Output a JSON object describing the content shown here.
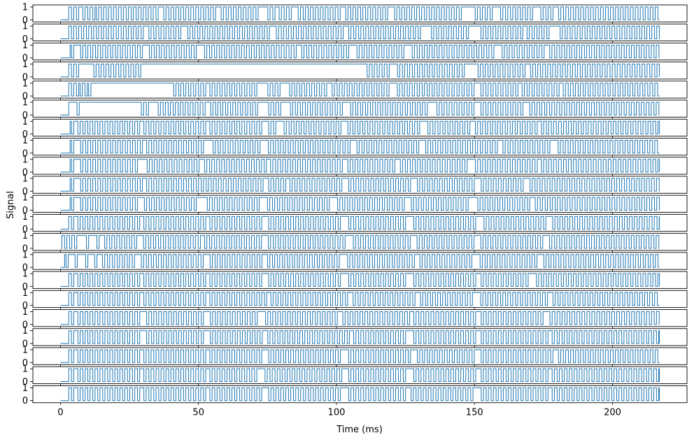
{
  "chart_data": {
    "type": "line",
    "subtype": "stacked digital signal traces (21 channels)",
    "xlabel": "Time (ms)",
    "ylabel": "Signal",
    "xlim": [
      -10,
      227
    ],
    "ylim": [
      0,
      1
    ],
    "x_ticks": [
      0,
      50,
      100,
      150,
      200
    ],
    "x_tick_labels": [
      "0",
      "50",
      "100",
      "150",
      "200"
    ],
    "y_ticks": [
      0,
      1
    ],
    "y_tick_labels": [
      "0",
      "1"
    ],
    "line_color": "#1f77b4",
    "grid": false,
    "legend": "none",
    "channel_count": 21,
    "time_range": [
      0,
      217
    ],
    "common": {
      "start_high": 3,
      "gap_every": 9,
      "period": 1.8
    },
    "channels": [
      {
        "start": 3.0,
        "segments": [
          [
            3,
            7
          ],
          [
            8,
            12
          ],
          [
            13,
            217
          ]
        ],
        "gaps": [
          [
            35,
            37
          ],
          [
            56,
            58
          ],
          [
            72,
            75
          ],
          [
            77,
            79
          ],
          [
            83,
            86
          ],
          [
            101,
            103
          ],
          [
            119,
            121
          ],
          [
            146,
            150
          ],
          [
            157,
            159
          ],
          [
            172,
            174
          ],
          [
            178,
            180
          ]
        ]
      },
      {
        "start": 3.0,
        "segments": [
          [
            3,
            8
          ],
          [
            9,
            217
          ]
        ],
        "gaps": [
          [
            30,
            32
          ],
          [
            44,
            46
          ],
          [
            76,
            78
          ],
          [
            102,
            104
          ],
          [
            131,
            134
          ],
          [
            148,
            152
          ],
          [
            167,
            169
          ],
          [
            178,
            181
          ]
        ]
      },
      {
        "start": 3.5,
        "segments": [
          [
            4,
            217
          ]
        ],
        "gaps": [
          [
            5,
            7
          ],
          [
            30,
            32
          ],
          [
            50,
            52
          ],
          [
            78,
            79
          ],
          [
            85,
            87
          ],
          [
            105,
            107
          ],
          [
            124,
            127
          ],
          [
            158,
            160
          ],
          [
            175,
            177
          ]
        ]
      },
      {
        "start": 3.0,
        "segments": [
          [
            3,
            7
          ],
          [
            12,
            29
          ],
          [
            111,
            217
          ]
        ],
        "gaps": [
          [
            120,
            122
          ],
          [
            147,
            151
          ],
          [
            168,
            170
          ]
        ]
      },
      {
        "start": 3.0,
        "segments": [
          [
            3,
            6
          ],
          [
            7,
            9
          ],
          [
            10,
            11
          ],
          [
            41,
            217
          ]
        ],
        "gaps": [
          [
            52,
            54
          ],
          [
            72,
            75
          ],
          [
            80,
            83
          ],
          [
            96,
            98
          ],
          [
            120,
            122
          ],
          [
            150,
            152
          ],
          [
            165,
            167
          ],
          [
            180,
            182
          ]
        ]
      },
      {
        "start": 3.0,
        "segments": [
          [
            6,
            6.5
          ],
          [
            29,
            32
          ],
          [
            35,
            217
          ]
        ],
        "gaps": [
          [
            52,
            54
          ],
          [
            72,
            75
          ],
          [
            80,
            83
          ],
          [
            103,
            105
          ],
          [
            133,
            136
          ],
          [
            150,
            152
          ],
          [
            168,
            170
          ]
        ]
      },
      {
        "start": 3.5,
        "segments": [
          [
            4,
            217
          ]
        ],
        "gaps": [
          [
            5,
            6
          ],
          [
            28,
            30
          ],
          [
            52,
            54
          ],
          [
            73,
            75
          ],
          [
            79,
            81
          ],
          [
            102,
            104
          ],
          [
            130,
            133
          ],
          [
            148,
            150
          ],
          [
            172,
            174
          ]
        ]
      },
      {
        "start": 3.5,
        "segments": [
          [
            4,
            217
          ]
        ],
        "gaps": [
          [
            5,
            7
          ],
          [
            29,
            31
          ],
          [
            52,
            55
          ],
          [
            73,
            75
          ],
          [
            105,
            107
          ],
          [
            130,
            132
          ],
          [
            158,
            160
          ],
          [
            178,
            180
          ]
        ]
      },
      {
        "start": 3.5,
        "segments": [
          [
            4,
            217
          ]
        ],
        "gaps": [
          [
            5,
            7
          ],
          [
            28,
            31
          ],
          [
            50,
            52
          ],
          [
            74,
            76
          ],
          [
            102,
            104
          ],
          [
            121,
            123
          ],
          [
            148,
            150
          ],
          [
            172,
            174
          ]
        ]
      },
      {
        "start": 3.5,
        "segments": [
          [
            4,
            217
          ]
        ],
        "gaps": [
          [
            5,
            7
          ],
          [
            29,
            31
          ],
          [
            73,
            75
          ],
          [
            81,
            83
          ],
          [
            102,
            104
          ],
          [
            127,
            129
          ],
          [
            150,
            152
          ],
          [
            168,
            170
          ]
        ]
      },
      {
        "start": 3.5,
        "segments": [
          [
            4,
            217
          ]
        ],
        "gaps": [
          [
            5,
            7
          ],
          [
            28,
            30
          ],
          [
            50,
            53
          ],
          [
            72,
            75
          ],
          [
            98,
            100
          ],
          [
            125,
            127
          ],
          [
            148,
            151
          ],
          [
            170,
            172
          ]
        ]
      },
      {
        "start": 3.0,
        "segments": [
          [
            3,
            217
          ]
        ],
        "gaps": [
          [
            4,
            6
          ],
          [
            28,
            30
          ],
          [
            52,
            54
          ],
          [
            73,
            75
          ],
          [
            102,
            104
          ],
          [
            126,
            128
          ],
          [
            150,
            153
          ],
          [
            176,
            178
          ]
        ]
      },
      {
        "start": 0.5,
        "segments": [
          [
            0.5,
            217
          ]
        ],
        "gaps": [
          [
            6,
            9
          ],
          [
            11,
            13
          ],
          [
            14,
            16
          ],
          [
            28,
            30
          ],
          [
            50,
            52
          ],
          [
            73,
            75
          ],
          [
            104,
            106
          ],
          [
            127,
            129
          ],
          [
            150,
            152
          ],
          [
            175,
            177
          ]
        ]
      },
      {
        "start": 1.5,
        "segments": [
          [
            2,
            217
          ]
        ],
        "gaps": [
          [
            3,
            5
          ],
          [
            7,
            9
          ],
          [
            10,
            12
          ],
          [
            13,
            15
          ],
          [
            27,
            29
          ],
          [
            52,
            54
          ],
          [
            73,
            75
          ],
          [
            102,
            104
          ],
          [
            128,
            130
          ],
          [
            150,
            152
          ],
          [
            173,
            175
          ]
        ]
      },
      {
        "start": 3.0,
        "segments": [
          [
            3,
            217
          ]
        ],
        "gaps": [
          [
            4,
            6
          ],
          [
            28,
            30
          ],
          [
            52,
            54
          ],
          [
            73,
            75
          ],
          [
            102,
            104
          ],
          [
            126,
            128
          ],
          [
            150,
            152
          ],
          [
            170,
            172
          ]
        ]
      },
      {
        "start": 3.0,
        "segments": [
          [
            3,
            217
          ]
        ],
        "gaps": [
          [
            4,
            6
          ],
          [
            28,
            30
          ],
          [
            52,
            54
          ],
          [
            74,
            76
          ],
          [
            104,
            106
          ],
          [
            128,
            130
          ],
          [
            150,
            152
          ],
          [
            176,
            178
          ]
        ]
      },
      {
        "start": 3.0,
        "segments": [
          [
            3,
            217
          ]
        ],
        "gaps": [
          [
            4,
            6
          ],
          [
            29,
            31
          ],
          [
            52,
            54
          ],
          [
            72,
            74
          ],
          [
            100,
            102
          ],
          [
            126,
            128
          ],
          [
            150,
            152
          ],
          [
            175,
            177
          ]
        ]
      },
      {
        "start": 3.0,
        "segments": [
          [
            3,
            217
          ]
        ],
        "gaps": [
          [
            4,
            6
          ],
          [
            29,
            31
          ],
          [
            52,
            54
          ],
          [
            73,
            75
          ],
          [
            104,
            106
          ],
          [
            126,
            128
          ],
          [
            150,
            152
          ],
          [
            176,
            178
          ]
        ]
      },
      {
        "start": 3.0,
        "segments": [
          [
            3,
            217
          ]
        ],
        "gaps": [
          [
            4,
            6
          ],
          [
            28,
            30
          ],
          [
            52,
            54
          ],
          [
            73,
            75
          ],
          [
            102,
            104
          ],
          [
            127,
            129
          ],
          [
            150,
            152
          ],
          [
            178,
            180
          ]
        ]
      },
      {
        "start": 3.0,
        "segments": [
          [
            3,
            217
          ]
        ],
        "gaps": [
          [
            4,
            6
          ],
          [
            28,
            30
          ],
          [
            52,
            54
          ],
          [
            72,
            74
          ],
          [
            102,
            104
          ],
          [
            126,
            128
          ],
          [
            150,
            152
          ],
          [
            176,
            178
          ]
        ]
      },
      {
        "start": 3.0,
        "segments": [
          [
            3,
            217
          ]
        ],
        "gaps": [
          [
            4,
            6
          ],
          [
            28,
            30
          ],
          [
            52,
            54
          ],
          [
            73,
            75
          ],
          [
            102,
            104
          ],
          [
            125,
            127
          ],
          [
            150,
            152
          ],
          [
            176,
            178
          ]
        ]
      }
    ]
  }
}
